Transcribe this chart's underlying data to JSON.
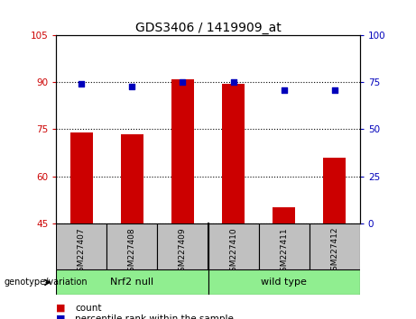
{
  "title": "GDS3406 / 1419909_at",
  "samples": [
    "GSM227407",
    "GSM227408",
    "GSM227409",
    "GSM227410",
    "GSM227411",
    "GSM227412"
  ],
  "bar_values": [
    74,
    73.5,
    91,
    89.5,
    50,
    66
  ],
  "dot_values_left_scale": [
    89.5,
    88.5,
    90.0,
    90.0,
    87.5,
    87.5
  ],
  "bar_bottom": 45,
  "ylim_left": [
    45,
    105
  ],
  "ylim_right": [
    0,
    100
  ],
  "yticks_left": [
    45,
    60,
    75,
    90,
    105
  ],
  "yticks_right": [
    0,
    25,
    50,
    75,
    100
  ],
  "group1_label": "Nrf2 null",
  "group2_label": "wild type",
  "group_label_left": "genotype/variation",
  "bar_color": "#CC0000",
  "dot_color": "#0000BB",
  "tick_color_left": "#CC0000",
  "tick_color_right": "#0000BB",
  "background_plot": "#FFFFFF",
  "background_label": "#C0C0C0",
  "background_group": "#90EE90",
  "legend_count": "count",
  "legend_pct": "percentile rank within the sample"
}
